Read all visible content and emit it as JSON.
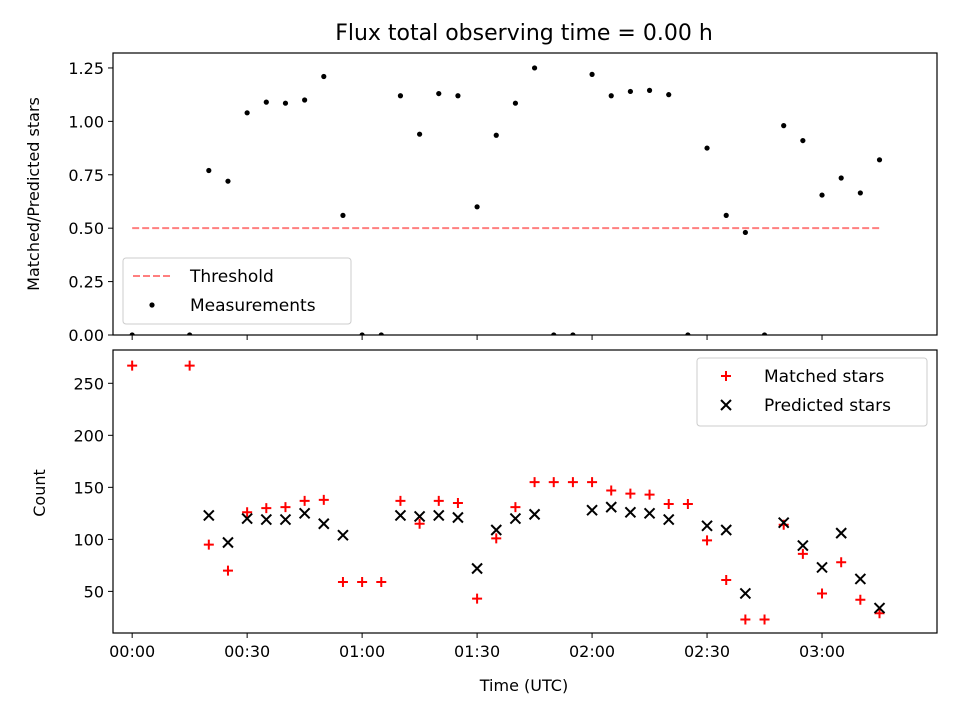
{
  "chart_data": [
    {
      "type": "scatter",
      "title": "Flux total observing time = 0.00 h",
      "ylabel": "Matched/Predicted stars",
      "xlabel": "",
      "xlim": [
        -5,
        210
      ],
      "ylim": [
        0,
        1.32
      ],
      "xticks": [
        0,
        30,
        60,
        90,
        120,
        150,
        180
      ],
      "yticks": [
        0,
        0.25,
        0.5,
        0.75,
        1.0,
        1.25
      ],
      "ytick_labels": [
        "0.00",
        "0.25",
        "0.50",
        "0.75",
        "1.00",
        "1.25"
      ],
      "x_tick_labels_shown": false,
      "legend_position": "lower-left",
      "series": [
        {
          "name": "Threshold",
          "kind": "dashed-line",
          "color": "#ff7f7f",
          "x": [
            0,
            195
          ],
          "y": [
            0.5,
            0.5
          ]
        },
        {
          "name": "Measurements",
          "kind": "dot",
          "color": "#000000",
          "x": [
            0,
            15,
            20,
            25,
            30,
            35,
            40,
            45,
            50,
            55,
            60,
            65,
            70,
            75,
            80,
            85,
            90,
            95,
            100,
            105,
            110,
            115,
            120,
            125,
            130,
            135,
            140,
            145,
            150,
            155,
            160,
            165,
            170,
            175,
            180,
            185,
            190,
            195
          ],
          "y": [
            0.0,
            0.0,
            0.77,
            0.72,
            1.04,
            1.09,
            1.085,
            1.1,
            1.21,
            0.56,
            0.0,
            0.0,
            1.12,
            0.94,
            1.13,
            1.12,
            0.6,
            0.935,
            1.085,
            1.25,
            0.0,
            0.0,
            1.22,
            1.12,
            1.14,
            1.145,
            1.125,
            0.0,
            0.875,
            0.56,
            0.48,
            0.0,
            0.98,
            0.91,
            0.655,
            0.735,
            0.665,
            0.82
          ]
        }
      ]
    },
    {
      "type": "scatter",
      "title": "",
      "xlabel": "Time (UTC)",
      "ylabel": "Count",
      "xlim": [
        -5,
        210
      ],
      "ylim": [
        10,
        282
      ],
      "xticks": [
        0,
        30,
        60,
        90,
        120,
        150,
        180
      ],
      "xtick_labels": [
        "00:00",
        "00:30",
        "01:00",
        "01:30",
        "02:00",
        "02:30",
        "03:00"
      ],
      "yticks": [
        50,
        100,
        150,
        200,
        250
      ],
      "ytick_labels": [
        "50",
        "100",
        "150",
        "200",
        "250"
      ],
      "legend_position": "upper-right",
      "series": [
        {
          "name": "Matched stars",
          "kind": "plus",
          "color": "#ff0000",
          "x": [
            0,
            15,
            20,
            25,
            30,
            35,
            40,
            45,
            50,
            55,
            60,
            65,
            70,
            75,
            80,
            85,
            90,
            95,
            100,
            105,
            110,
            115,
            120,
            125,
            130,
            135,
            140,
            145,
            150,
            155,
            160,
            165,
            170,
            175,
            180,
            185,
            190,
            195
          ],
          "y": [
            267,
            267,
            95,
            70,
            126,
            130,
            131,
            137,
            138,
            59,
            59,
            59,
            137,
            115,
            137,
            135,
            43,
            101,
            131,
            155,
            155,
            155,
            155,
            147,
            144,
            143,
            134,
            134,
            99,
            61,
            23,
            23,
            114,
            86,
            48,
            78,
            42,
            29
          ]
        },
        {
          "name": "Predicted stars",
          "kind": "x",
          "color": "#000000",
          "x": [
            20,
            25,
            30,
            35,
            40,
            45,
            50,
            55,
            70,
            75,
            80,
            85,
            90,
            95,
            100,
            105,
            120,
            125,
            130,
            135,
            140,
            150,
            155,
            160,
            170,
            175,
            180,
            185,
            190,
            195
          ],
          "y": [
            123,
            97,
            120,
            119,
            119,
            125,
            115,
            104,
            123,
            122,
            123,
            121,
            72,
            109,
            120,
            124,
            128,
            131,
            126,
            125,
            119,
            113,
            109,
            48,
            116,
            94,
            73,
            106,
            62,
            34
          ]
        }
      ]
    }
  ]
}
